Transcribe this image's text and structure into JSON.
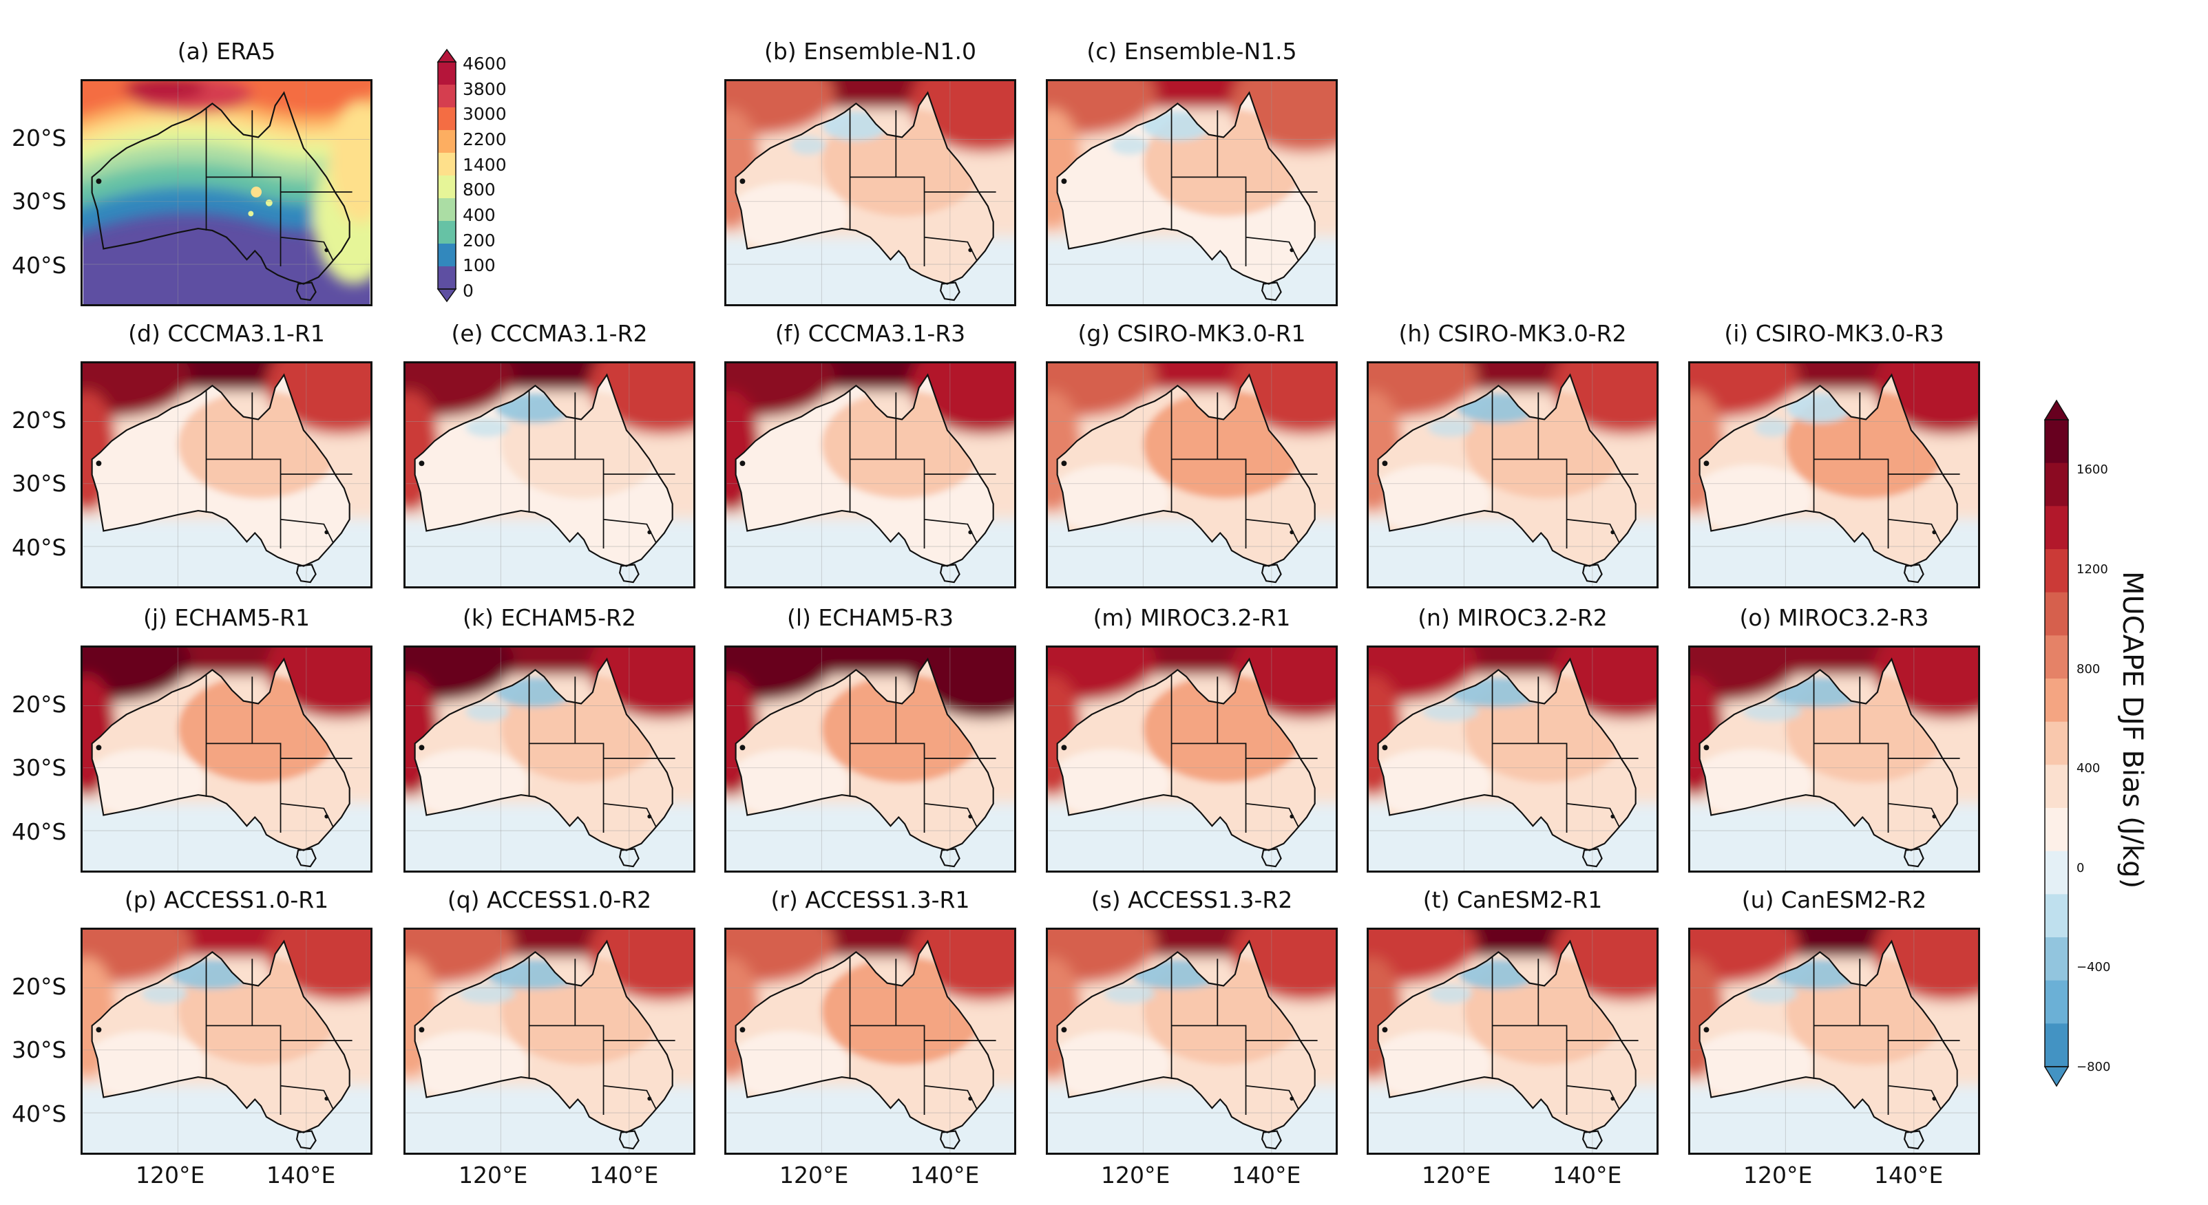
{
  "chart_data": {
    "type": "heatmap",
    "figure_description_free": true,
    "region": "Australia",
    "lat_ticks": [
      "20°S",
      "30°S",
      "40°S"
    ],
    "lon_ticks": [
      "120°E",
      "140°E"
    ],
    "panels": [
      {
        "id": "a",
        "title": "(a) ERA5",
        "kind": "climatology"
      },
      {
        "id": "b",
        "title": "(b) Ensemble-N1.0",
        "kind": "bias",
        "north": 0.75,
        "west": 0.5,
        "east": 0.55,
        "interior": 0.3,
        "blue": 0.15
      },
      {
        "id": "c",
        "title": "(c) Ensemble-N1.5",
        "kind": "bias",
        "north": 0.7,
        "west": 0.4,
        "east": 0.5,
        "interior": 0.25,
        "blue": 0.2
      },
      {
        "id": "d",
        "title": "(d) CCCMA3.1-R1",
        "kind": "bias",
        "north": 0.95,
        "west": 0.8,
        "east": 0.55,
        "interior": 0.2,
        "blue": 0.05
      },
      {
        "id": "e",
        "title": "(e) CCCMA3.1-R2",
        "kind": "bias",
        "north": 0.9,
        "west": 0.8,
        "east": 0.55,
        "interior": 0.15,
        "blue": 0.3
      },
      {
        "id": "f",
        "title": "(f) CCCMA3.1-R3",
        "kind": "bias",
        "north": 1.0,
        "west": 0.85,
        "east": 0.65,
        "interior": 0.25,
        "blue": 0.1
      },
      {
        "id": "g",
        "title": "(g) CSIRO-MK3.0-R1",
        "kind": "bias",
        "north": 0.7,
        "west": 0.45,
        "east": 0.6,
        "interior": 0.55,
        "blue": 0.1
      },
      {
        "id": "h",
        "title": "(h) CSIRO-MK3.0-R2",
        "kind": "bias",
        "north": 0.75,
        "west": 0.5,
        "east": 0.6,
        "interior": 0.35,
        "blue": 0.35
      },
      {
        "id": "i",
        "title": "(i) CSIRO-MK3.0-R3",
        "kind": "bias",
        "north": 0.85,
        "west": 0.55,
        "east": 0.7,
        "interior": 0.4,
        "blue": 0.15
      },
      {
        "id": "j",
        "title": "(j) ECHAM5-R1",
        "kind": "bias",
        "north": 0.85,
        "west": 0.95,
        "east": 0.7,
        "interior": 0.4,
        "blue": 0.05
      },
      {
        "id": "k",
        "title": "(k) ECHAM5-R2",
        "kind": "bias",
        "north": 0.8,
        "west": 0.95,
        "east": 0.65,
        "interior": 0.35,
        "blue": 0.3
      },
      {
        "id": "l",
        "title": "(l) ECHAM5-R3",
        "kind": "bias",
        "north": 1.0,
        "west": 0.95,
        "east": 0.95,
        "interior": 0.45,
        "blue": 0.05
      },
      {
        "id": "m",
        "title": "(m) MIROC3.2-R1",
        "kind": "bias",
        "north": 0.85,
        "west": 0.75,
        "east": 0.7,
        "interior": 0.55,
        "blue": 0.05
      },
      {
        "id": "n",
        "title": "(n) MIROC3.2-R2",
        "kind": "bias",
        "north": 0.8,
        "west": 0.75,
        "east": 0.65,
        "interior": 0.35,
        "blue": 0.55
      },
      {
        "id": "o",
        "title": "(o) MIROC3.2-R3",
        "kind": "bias",
        "north": 0.8,
        "west": 0.85,
        "east": 0.65,
        "interior": 0.35,
        "blue": 0.6
      },
      {
        "id": "p",
        "title": "(p) ACCESS1.0-R1",
        "kind": "bias",
        "north": 0.7,
        "west": 0.4,
        "east": 0.55,
        "interior": 0.3,
        "blue": 0.35
      },
      {
        "id": "q",
        "title": "(q) ACCESS1.0-R2",
        "kind": "bias",
        "north": 0.75,
        "west": 0.4,
        "east": 0.55,
        "interior": 0.3,
        "blue": 0.55
      },
      {
        "id": "r",
        "title": "(r) ACCESS1.3-R1",
        "kind": "bias",
        "north": 0.75,
        "west": 0.5,
        "east": 0.6,
        "interior": 0.5,
        "blue": 0.05
      },
      {
        "id": "s",
        "title": "(s) ACCESS1.3-R2",
        "kind": "bias",
        "north": 0.8,
        "west": 0.45,
        "east": 0.6,
        "interior": 0.35,
        "blue": 0.45
      },
      {
        "id": "t",
        "title": "(t) CanESM2-R1",
        "kind": "bias",
        "north": 0.9,
        "west": 0.6,
        "east": 0.6,
        "interior": 0.3,
        "blue": 0.3
      },
      {
        "id": "u",
        "title": "(u) CanESM2-R2",
        "kind": "bias",
        "north": 0.9,
        "west": 0.6,
        "east": 0.6,
        "interior": 0.3,
        "blue": 0.45
      }
    ],
    "era5_colorbar": {
      "ticks": [
        "4600",
        "3800",
        "3000",
        "2200",
        "1400",
        "800",
        "400",
        "200",
        "100",
        "0"
      ],
      "colors": [
        "#b5153a",
        "#d53e4f",
        "#f46d43",
        "#fdae61",
        "#fee08b",
        "#e6f598",
        "#abdda4",
        "#66c2a5",
        "#3288bd",
        "#5e4fa2"
      ]
    },
    "bias_colorbar": {
      "title": "MUCAPE DJF Bias (J/kg)",
      "ticks": [
        "1600",
        "1200",
        "800",
        "400",
        "0",
        "−400",
        "−800"
      ],
      "vmin": -800,
      "vmax": 1800,
      "colors": [
        "#67001f",
        "#8b0a22",
        "#b2182b",
        "#cb3a37",
        "#d6604d",
        "#e58267",
        "#f4a582",
        "#f9c8ad",
        "#fbe0cf",
        "#fdf0e8",
        "#e4f0f6",
        "#bfe0ee",
        "#92c5de",
        "#6bb0d6",
        "#4393c3"
      ]
    }
  }
}
